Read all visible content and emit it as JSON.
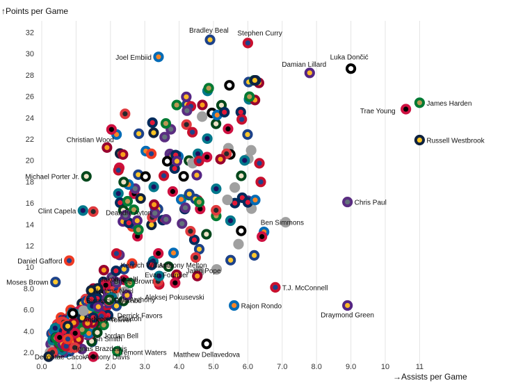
{
  "chart_data": {
    "type": "scatter",
    "title": "",
    "xlabel": "→Assists per Game",
    "ylabel": "↑Points per Game",
    "xlim": [
      0,
      12
    ],
    "ylim": [
      1.2,
      33.5
    ],
    "x_ticks": [
      "0.0",
      "1.0",
      "2.0",
      "3.0",
      "4.0",
      "5.0",
      "6.0",
      "7.0",
      "8.0",
      "9.0",
      "10",
      "11"
    ],
    "y_ticks": [
      "2.0",
      "4.0",
      "6.0",
      "8.0",
      "10",
      "12",
      "14",
      "16",
      "18",
      "20",
      "22",
      "24",
      "26",
      "28",
      "30",
      "32"
    ],
    "grid": "vertical",
    "labeled_players": [
      {
        "name": "Bradley Beal",
        "x": 4.9,
        "y": 31.3
      },
      {
        "name": "Stephen Curry",
        "x": 6.0,
        "y": 31.0
      },
      {
        "name": "Joel Embiid",
        "x": 3.4,
        "y": 29.7
      },
      {
        "name": "Damian Lillard",
        "x": 7.8,
        "y": 28.2
      },
      {
        "name": "Luka Dončić",
        "x": 9.0,
        "y": 28.6
      },
      {
        "name": "James Harden",
        "x": 11.0,
        "y": 25.4
      },
      {
        "name": "Trae Young",
        "x": 10.6,
        "y": 24.8
      },
      {
        "name": "Russell Westbrook",
        "x": 11.0,
        "y": 21.9
      },
      {
        "name": "Christian Wood",
        "x": 1.9,
        "y": 21.2
      },
      {
        "name": "Michael Porter Jr.",
        "x": 1.3,
        "y": 18.5
      },
      {
        "name": "Chris Paul",
        "x": 8.9,
        "y": 16.1
      },
      {
        "name": "Clint Capela",
        "x": 1.2,
        "y": 15.3
      },
      {
        "name": "Deandre Ayton",
        "x": 1.5,
        "y": 15.2
      },
      {
        "name": "Ben Simmons",
        "x": 7.1,
        "y": 14.2
      },
      {
        "name": "Daniel Gafford",
        "x": 0.8,
        "y": 10.6
      },
      {
        "name": "Anthony Melton",
        "x": 3.2,
        "y": 10.2
      },
      {
        "name": "Moses Brown",
        "x": 0.4,
        "y": 8.6
      },
      {
        "name": "T.J. McConnell",
        "x": 6.8,
        "y": 8.1
      },
      {
        "name": "Rajon Rondo",
        "x": 5.6,
        "y": 6.4
      },
      {
        "name": "Draymond Green",
        "x": 8.9,
        "y": 6.4
      },
      {
        "name": "Matthew Dellavedova",
        "x": 4.8,
        "y": 2.8
      },
      {
        "name": "Tremont Waters",
        "x": 2.2,
        "y": 2.1
      },
      {
        "name": "Anthony Davis",
        "x": 1.5,
        "y": 1.6
      },
      {
        "name": "Devontae Cacok",
        "x": 0.2,
        "y": 1.6
      }
    ],
    "crowded_labels": [
      {
        "text": "Kenrich Williams",
        "x": 2.3,
        "y": 10.2
      },
      {
        "text": "Jakob Poeltl",
        "x": 1.7,
        "y": 8.9
      },
      {
        "text": "Bruce Brown",
        "x": 2.1,
        "y": 8.7
      },
      {
        "text": "Nerlens Noel",
        "x": 1.5,
        "y": 7.8
      },
      {
        "text": "Bismack Biyombo",
        "x": 1.3,
        "y": 6.9
      },
      {
        "text": "Anthony Tolliver",
        "x": 1.2,
        "y": 5.1
      },
      {
        "text": "Ish Smith",
        "x": 1.5,
        "y": 3.3
      },
      {
        "text": "Ignas Brazdeikis",
        "x": 1.0,
        "y": 2.4
      }
    ],
    "extra_labels": [
      {
        "text": "Jalen Pope",
        "x": 4.2,
        "y": 9.7
      },
      {
        "text": "Evan Fournier",
        "x": 3.0,
        "y": 9.3
      },
      {
        "text": "Aleksej Pokusevski",
        "x": 3.0,
        "y": 7.2
      },
      {
        "text": "Cole Anthony",
        "x": 2.1,
        "y": 7.0
      },
      {
        "text": "Nicolas Claxton",
        "x": 1.5,
        "y": 5.2
      },
      {
        "text": "Derrick Favors",
        "x": 2.2,
        "y": 5.5
      },
      {
        "text": "Jordan Bell",
        "x": 1.8,
        "y": 3.6
      }
    ],
    "team_colors": [
      [
        "#1d428a",
        "#ffc72c"
      ],
      [
        "#c8102e",
        "#1d428a"
      ],
      [
        "#006bb6",
        "#f58426"
      ],
      [
        "#552583",
        "#fdb927"
      ],
      [
        "#000000",
        "#ffffff"
      ],
      [
        "#007a33",
        "#ba9653"
      ],
      [
        "#ce1141",
        "#000000"
      ],
      [
        "#0e2240",
        "#fec524"
      ],
      [
        "#98002e",
        "#f9a01b"
      ],
      [
        "#00471b",
        "#eee1c6"
      ],
      [
        "#5a2d81",
        "#63727a"
      ],
      [
        "#00788c",
        "#1d1160"
      ],
      [
        "#e03a3e",
        "#26282a"
      ],
      [
        "#a0a0a0",
        "#a0a0a0"
      ],
      [
        "#ef3b24",
        "#1d428a"
      ],
      [
        "#002b5c",
        "#e31837"
      ]
    ]
  }
}
